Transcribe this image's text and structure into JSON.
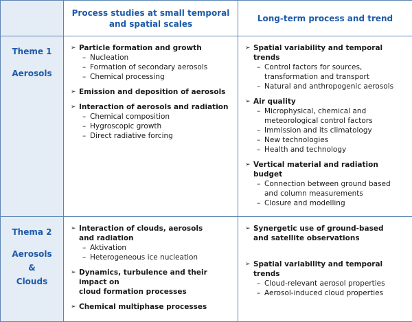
{
  "header": {
    "col_small": "Process studies at small temporal\nand spatial scales",
    "col_long": "Long-term process and trend"
  },
  "rows": [
    {
      "theme_id": "Theme 1",
      "theme_label": "Aerosols",
      "small": [
        {
          "heading": "Particle formation and growth",
          "subs": [
            "Nucleation",
            "Formation of secondary aerosols",
            "Chemical processing"
          ]
        },
        {
          "heading": "Emission and deposition of aerosols",
          "subs": []
        },
        {
          "heading": "Interaction of aerosols and radiation",
          "subs": [
            "Chemical composition",
            "Hygroscopic growth",
            "Direct radiative forcing"
          ]
        }
      ],
      "long": [
        {
          "heading": "Spatial variability and temporal trends",
          "subs": [
            "Control factors for sources,\ntransformation and transport",
            "Natural and anthropogenic aerosols"
          ]
        },
        {
          "heading": "Air quality",
          "subs": [
            "Microphysical, chemical and\nmeteorological control factors",
            "Immission and its climatology",
            "New technologies",
            "Health and technology"
          ]
        },
        {
          "heading": "Vertical material and radiation budget",
          "subs": [
            "Connection between ground based\nand column measurements",
            "Closure and modelling"
          ]
        }
      ]
    },
    {
      "theme_id": "Thema 2",
      "theme_label": "Aerosols\n&\nClouds",
      "small": [
        {
          "heading": "Interaction of clouds, aerosols\nand radiation",
          "subs": [
            "Aktivation",
            "Heterogeneous ice nucleation"
          ]
        },
        {
          "heading": "Dynamics, turbulence and their impact on\ncloud formation processes",
          "subs": []
        },
        {
          "heading": "Chemical multiphase processes",
          "subs": []
        }
      ],
      "long": [
        {
          "heading": "Synergetic use of ground-based\nand satellite observations",
          "subs": []
        },
        {
          "heading": "Spatial variability and temporal trends",
          "subs": [
            "Cloud-relevant aerosol properties",
            "Aerosol-induced cloud properties"
          ]
        }
      ]
    }
  ]
}
